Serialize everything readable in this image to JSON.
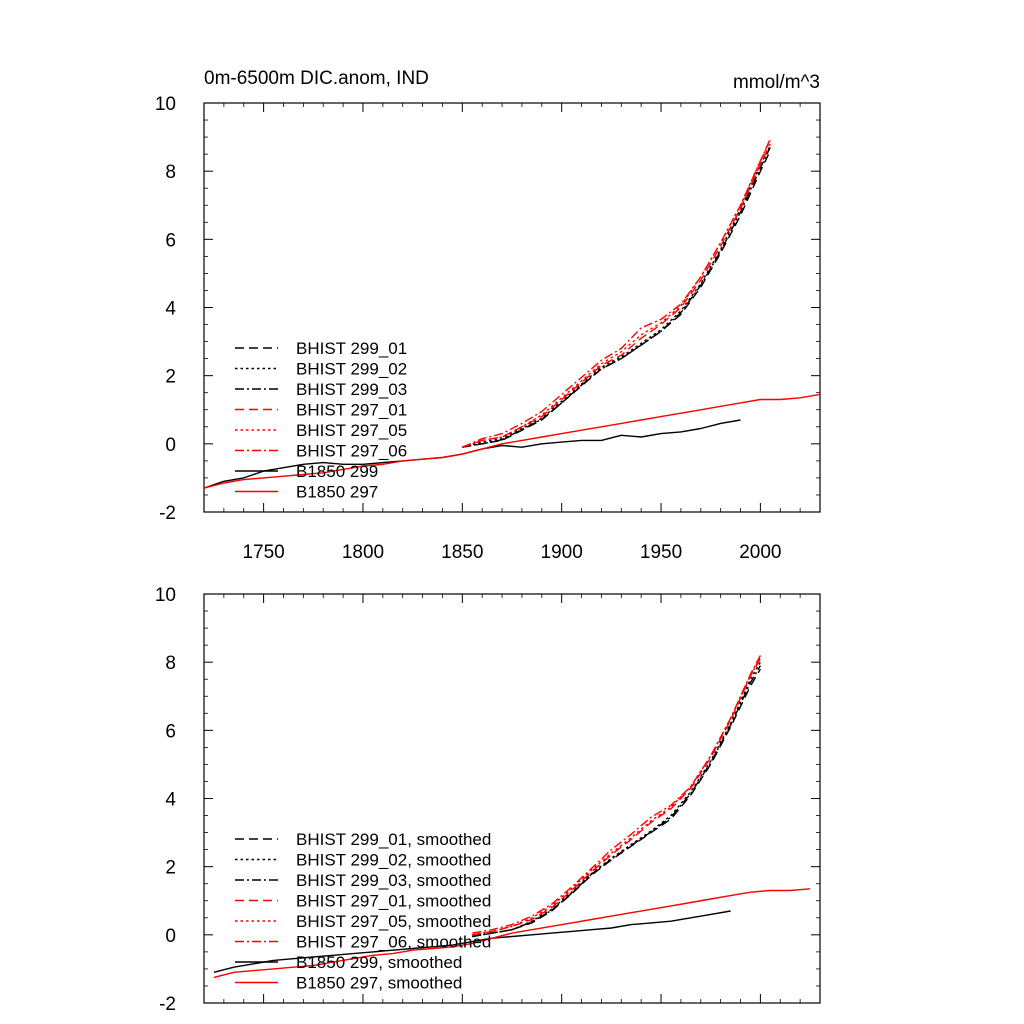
{
  "chart_data": [
    {
      "type": "line",
      "title": "0m-6500m DIC.anom, IND",
      "units": "mmol/m^3",
      "xlim": [
        1720,
        2030
      ],
      "ylim": [
        -2,
        10
      ],
      "xticks": [
        1750,
        1800,
        1850,
        1900,
        1950,
        2000
      ],
      "yticks": [
        -2,
        0,
        2,
        4,
        6,
        8,
        10
      ],
      "xtick_labels_shown": true,
      "grid": false,
      "legend_position": "lower-left",
      "series": [
        {
          "name": "BHIST 299_01",
          "color": "#000000",
          "dash": "dashed",
          "x": [
            1850,
            1860,
            1870,
            1880,
            1890,
            1900,
            1910,
            1920,
            1930,
            1940,
            1950,
            1960,
            1970,
            1980,
            1990,
            2000,
            2005
          ],
          "y": [
            -0.1,
            0.0,
            0.1,
            0.4,
            0.7,
            1.2,
            1.7,
            2.2,
            2.5,
            2.9,
            3.3,
            3.8,
            4.6,
            5.6,
            6.7,
            8.0,
            8.6
          ]
        },
        {
          "name": "BHIST 299_02",
          "color": "#000000",
          "dash": "dotted",
          "x": [
            1850,
            1860,
            1870,
            1880,
            1890,
            1900,
            1910,
            1920,
            1930,
            1940,
            1950,
            1960,
            1970,
            1980,
            1990,
            2000,
            2005
          ],
          "y": [
            -0.1,
            0.05,
            0.15,
            0.45,
            0.75,
            1.25,
            1.75,
            2.25,
            2.55,
            2.95,
            3.35,
            3.9,
            4.7,
            5.7,
            6.9,
            8.2,
            8.75
          ]
        },
        {
          "name": "BHIST 299_03",
          "color": "#000000",
          "dash": "dashdot",
          "x": [
            1850,
            1860,
            1870,
            1880,
            1890,
            1900,
            1910,
            1920,
            1930,
            1940,
            1950,
            1960,
            1970,
            1980,
            1990,
            2000,
            2005
          ],
          "y": [
            -0.1,
            0.0,
            0.12,
            0.42,
            0.72,
            1.2,
            1.72,
            2.2,
            2.5,
            2.9,
            3.3,
            3.85,
            4.65,
            5.65,
            6.8,
            8.1,
            8.7
          ]
        },
        {
          "name": "BHIST 297_01",
          "color": "#ff0000",
          "dash": "dashed",
          "x": [
            1850,
            1860,
            1870,
            1880,
            1890,
            1900,
            1910,
            1920,
            1930,
            1940,
            1950,
            1960,
            1970,
            1980,
            1990,
            2000,
            2005
          ],
          "y": [
            -0.1,
            0.1,
            0.2,
            0.5,
            0.8,
            1.3,
            1.8,
            2.3,
            2.6,
            3.1,
            3.5,
            4.0,
            4.8,
            5.8,
            6.9,
            8.2,
            8.8
          ]
        },
        {
          "name": "BHIST 297_05",
          "color": "#ff0000",
          "dash": "dotted",
          "x": [
            1850,
            1860,
            1870,
            1880,
            1890,
            1900,
            1910,
            1920,
            1930,
            1940,
            1950,
            1960,
            1970,
            1980,
            1990,
            2000,
            2005
          ],
          "y": [
            -0.1,
            0.1,
            0.2,
            0.5,
            0.85,
            1.35,
            1.85,
            2.35,
            2.7,
            3.2,
            3.55,
            4.05,
            4.9,
            5.9,
            7.0,
            8.3,
            8.9
          ]
        },
        {
          "name": "BHIST 297_06",
          "color": "#ff0000",
          "dash": "dashdot",
          "x": [
            1850,
            1860,
            1870,
            1880,
            1890,
            1900,
            1910,
            1920,
            1930,
            1940,
            1950,
            1960,
            1970,
            1980,
            1990,
            2000,
            2005
          ],
          "y": [
            -0.1,
            0.15,
            0.3,
            0.6,
            0.95,
            1.45,
            1.95,
            2.45,
            2.8,
            3.4,
            3.65,
            4.1,
            4.9,
            5.9,
            7.0,
            8.3,
            8.95
          ]
        },
        {
          "name": "B1850 299",
          "color": "#000000",
          "dash": "solid",
          "x": [
            1720,
            1730,
            1740,
            1750,
            1760,
            1770,
            1780,
            1790,
            1800,
            1810,
            1820,
            1830,
            1840,
            1850,
            1860,
            1870,
            1880,
            1890,
            1900,
            1910,
            1920,
            1930,
            1940,
            1950,
            1960,
            1970,
            1980,
            1990
          ],
          "y": [
            -1.3,
            -1.1,
            -1.0,
            -0.8,
            -0.7,
            -0.6,
            -0.55,
            -0.6,
            -0.6,
            -0.55,
            -0.5,
            -0.45,
            -0.4,
            -0.3,
            -0.15,
            -0.05,
            -0.1,
            0.0,
            0.05,
            0.1,
            0.1,
            0.25,
            0.2,
            0.3,
            0.35,
            0.45,
            0.6,
            0.7
          ]
        },
        {
          "name": "B1850 297",
          "color": "#ff0000",
          "dash": "solid",
          "x": [
            1720,
            1730,
            1740,
            1750,
            1760,
            1770,
            1780,
            1790,
            1800,
            1810,
            1820,
            1830,
            1840,
            1850,
            1860,
            1870,
            1880,
            1890,
            1900,
            1910,
            1920,
            1930,
            1940,
            1950,
            1960,
            1970,
            1980,
            1990,
            2000,
            2010,
            2020,
            2030
          ],
          "y": [
            -1.3,
            -1.15,
            -1.05,
            -1.0,
            -0.95,
            -0.9,
            -0.85,
            -0.75,
            -0.65,
            -0.6,
            -0.5,
            -0.45,
            -0.4,
            -0.3,
            -0.15,
            0.0,
            0.1,
            0.2,
            0.3,
            0.4,
            0.5,
            0.6,
            0.7,
            0.8,
            0.9,
            1.0,
            1.1,
            1.2,
            1.3,
            1.3,
            1.35,
            1.45
          ]
        }
      ]
    },
    {
      "type": "line",
      "title": "",
      "units": "",
      "xlim": [
        1720,
        2030
      ],
      "ylim": [
        -2,
        10
      ],
      "xticks": [
        1750,
        1800,
        1850,
        1900,
        1950,
        2000
      ],
      "yticks": [
        -2,
        0,
        2,
        4,
        6,
        8,
        10
      ],
      "xtick_labels_shown": false,
      "grid": false,
      "legend_position": "lower-left",
      "series": [
        {
          "name": "BHIST 299_01, smoothed",
          "color": "#000000",
          "dash": "dashed",
          "x": [
            1855,
            1865,
            1875,
            1885,
            1895,
            1905,
            1915,
            1925,
            1935,
            1945,
            1955,
            1965,
            1975,
            1985,
            1995,
            2000
          ],
          "y": [
            -0.05,
            0.05,
            0.15,
            0.35,
            0.7,
            1.2,
            1.75,
            2.2,
            2.6,
            3.0,
            3.4,
            4.1,
            5.0,
            6.1,
            7.3,
            7.8
          ]
        },
        {
          "name": "BHIST 299_02, smoothed",
          "color": "#000000",
          "dash": "dotted",
          "x": [
            1855,
            1865,
            1875,
            1885,
            1895,
            1905,
            1915,
            1925,
            1935,
            1945,
            1955,
            1965,
            1975,
            1985,
            1995,
            2000
          ],
          "y": [
            -0.05,
            0.05,
            0.15,
            0.4,
            0.75,
            1.25,
            1.8,
            2.25,
            2.65,
            3.05,
            3.5,
            4.2,
            5.1,
            6.2,
            7.5,
            8.0
          ]
        },
        {
          "name": "BHIST 299_03, smoothed",
          "color": "#000000",
          "dash": "dashdot",
          "x": [
            1855,
            1865,
            1875,
            1885,
            1895,
            1905,
            1915,
            1925,
            1935,
            1945,
            1955,
            1965,
            1975,
            1985,
            1995,
            2000
          ],
          "y": [
            -0.05,
            0.05,
            0.15,
            0.38,
            0.72,
            1.22,
            1.78,
            2.22,
            2.62,
            3.02,
            3.45,
            4.15,
            5.05,
            6.15,
            7.4,
            7.9
          ]
        },
        {
          "name": "BHIST 297_01, smoothed",
          "color": "#ff0000",
          "dash": "dashed",
          "x": [
            1855,
            1865,
            1875,
            1885,
            1895,
            1905,
            1915,
            1925,
            1935,
            1945,
            1955,
            1965,
            1975,
            1985,
            1995,
            2000
          ],
          "y": [
            0.0,
            0.1,
            0.25,
            0.45,
            0.8,
            1.3,
            1.85,
            2.35,
            2.8,
            3.3,
            3.7,
            4.3,
            5.2,
            6.3,
            7.6,
            8.1
          ]
        },
        {
          "name": "BHIST 297_05, smoothed",
          "color": "#ff0000",
          "dash": "dotted",
          "x": [
            1855,
            1865,
            1875,
            1885,
            1895,
            1905,
            1915,
            1925,
            1935,
            1945,
            1955,
            1965,
            1975,
            1985,
            1995,
            2000
          ],
          "y": [
            0.0,
            0.1,
            0.25,
            0.5,
            0.85,
            1.35,
            1.9,
            2.4,
            2.85,
            3.35,
            3.75,
            4.35,
            5.25,
            6.35,
            7.6,
            8.15
          ]
        },
        {
          "name": "BHIST 297_06, smoothed",
          "color": "#ff0000",
          "dash": "dashdot",
          "x": [
            1855,
            1865,
            1875,
            1885,
            1895,
            1905,
            1915,
            1925,
            1935,
            1945,
            1955,
            1965,
            1975,
            1985,
            1995,
            2000
          ],
          "y": [
            0.05,
            0.15,
            0.3,
            0.55,
            0.9,
            1.4,
            1.95,
            2.5,
            2.95,
            3.45,
            3.8,
            4.35,
            5.25,
            6.35,
            7.65,
            8.2
          ]
        },
        {
          "name": "B1850 299, smoothed",
          "color": "#000000",
          "dash": "solid",
          "x": [
            1725,
            1735,
            1745,
            1755,
            1765,
            1775,
            1785,
            1795,
            1805,
            1815,
            1825,
            1835,
            1845,
            1855,
            1865,
            1875,
            1885,
            1895,
            1905,
            1915,
            1925,
            1935,
            1945,
            1955,
            1965,
            1975,
            1985
          ],
          "y": [
            -1.1,
            -0.95,
            -0.85,
            -0.75,
            -0.7,
            -0.65,
            -0.6,
            -0.55,
            -0.5,
            -0.45,
            -0.4,
            -0.35,
            -0.3,
            -0.2,
            -0.1,
            -0.05,
            0.0,
            0.05,
            0.1,
            0.15,
            0.2,
            0.3,
            0.35,
            0.4,
            0.5,
            0.6,
            0.7
          ]
        },
        {
          "name": "B1850 297, smoothed",
          "color": "#ff0000",
          "dash": "solid",
          "x": [
            1725,
            1735,
            1745,
            1755,
            1765,
            1775,
            1785,
            1795,
            1805,
            1815,
            1825,
            1835,
            1845,
            1855,
            1865,
            1875,
            1885,
            1895,
            1905,
            1915,
            1925,
            1935,
            1945,
            1955,
            1965,
            1975,
            1985,
            1995,
            2005,
            2015,
            2025
          ],
          "y": [
            -1.25,
            -1.1,
            -1.05,
            -1.0,
            -0.95,
            -0.9,
            -0.8,
            -0.7,
            -0.6,
            -0.55,
            -0.45,
            -0.4,
            -0.35,
            -0.25,
            -0.1,
            0.05,
            0.15,
            0.25,
            0.35,
            0.45,
            0.55,
            0.65,
            0.75,
            0.85,
            0.95,
            1.05,
            1.15,
            1.25,
            1.3,
            1.3,
            1.35
          ]
        }
      ]
    }
  ]
}
